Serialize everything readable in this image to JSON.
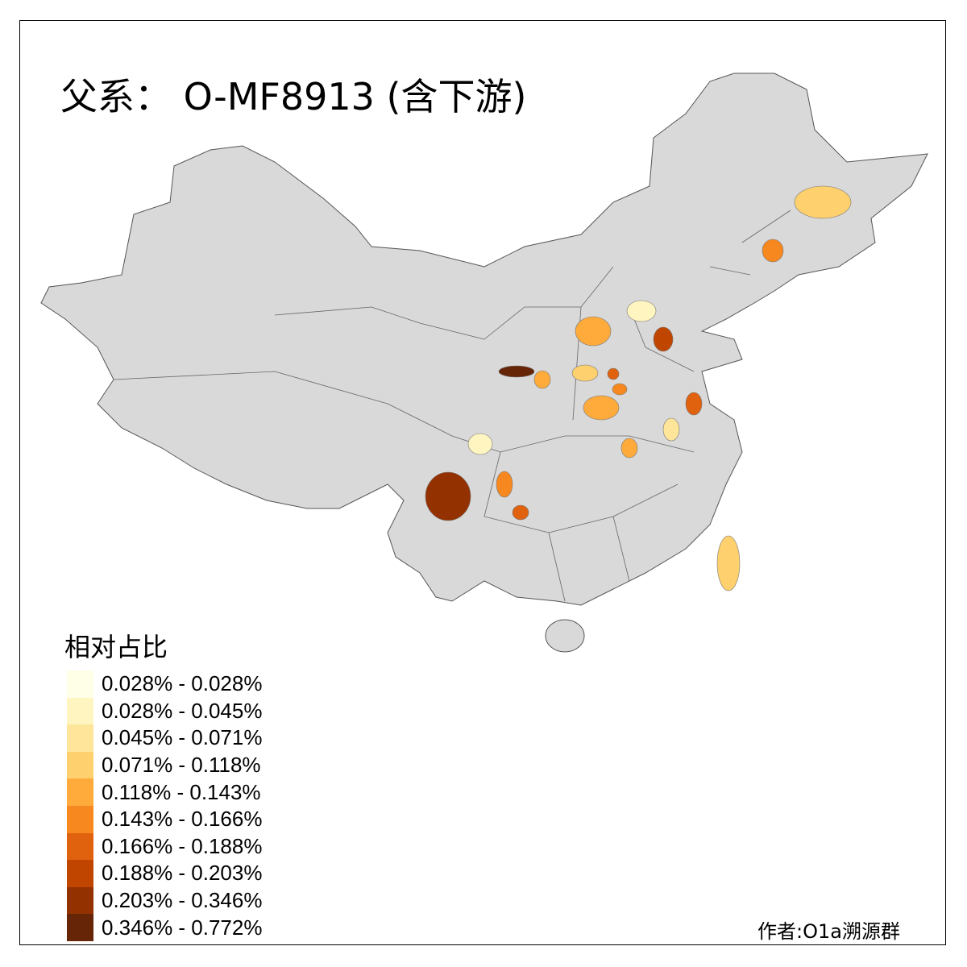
{
  "title": "父系： O-MF8913 (含下游)",
  "legend": {
    "title": "相对占比",
    "items": [
      {
        "label": "0.028% - 0.028%",
        "color": "#fffee6"
      },
      {
        "label": "0.028% - 0.045%",
        "color": "#fff5c0"
      },
      {
        "label": "0.045% - 0.071%",
        "color": "#fee59a"
      },
      {
        "label": "0.071% - 0.118%",
        "color": "#fed06e"
      },
      {
        "label": "0.118% - 0.143%",
        "color": "#feab3c"
      },
      {
        "label": "0.143% - 0.166%",
        "color": "#f6881f"
      },
      {
        "label": "0.166% - 0.188%",
        "color": "#e0620f"
      },
      {
        "label": "0.188% - 0.203%",
        "color": "#c04600"
      },
      {
        "label": "0.203% - 0.346%",
        "color": "#933100"
      },
      {
        "label": "0.346% - 0.772%",
        "color": "#662506"
      }
    ]
  },
  "base_color": "#d9d9d9",
  "author": "作者:O1a溯源群"
}
